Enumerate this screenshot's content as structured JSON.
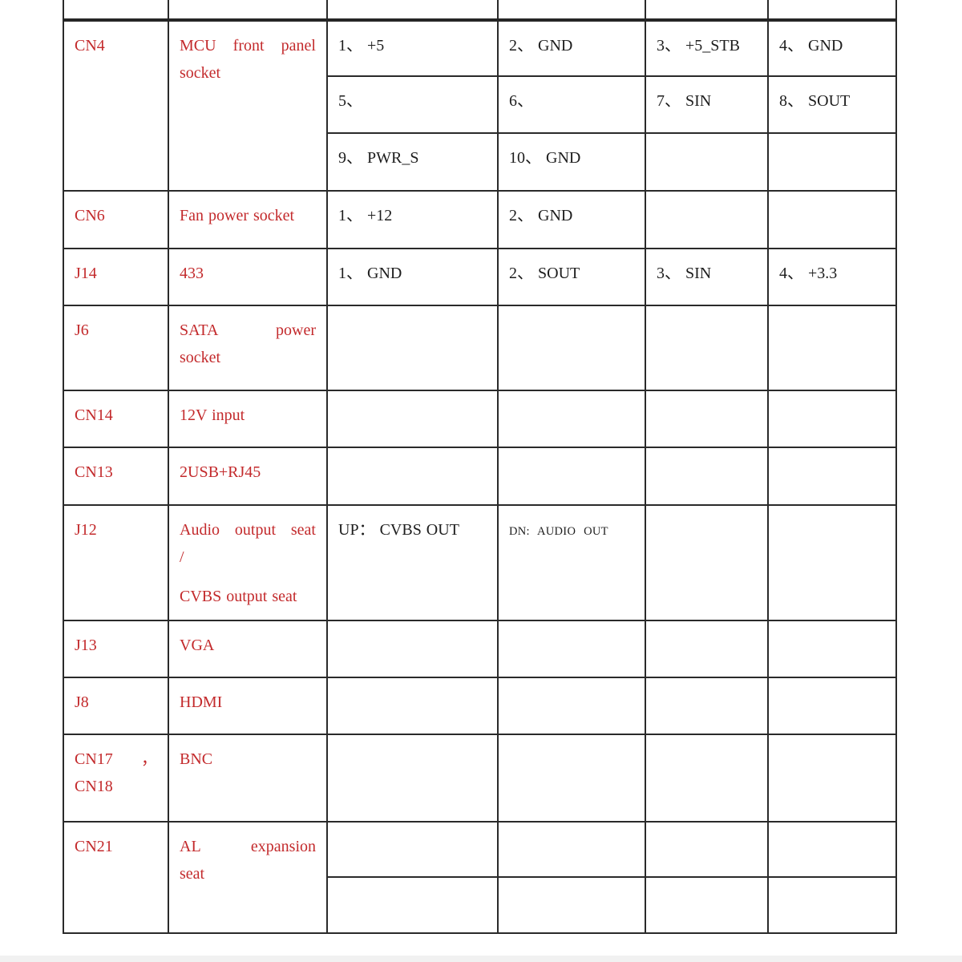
{
  "colors": {
    "accent_red": "#c32a2c",
    "text_black": "#1d1d1d",
    "border": "#2a2a2a"
  },
  "rows": {
    "cn4": {
      "name": "CN4",
      "desc": [
        "MCU front panel",
        "socket"
      ],
      "pins": {
        "p1": "1、 +5",
        "p2": "2、 GND",
        "p3": "3、 +5_STB",
        "p4": "4、 GND",
        "p5": "5、",
        "p6": "6、",
        "p7": "7、 SIN",
        "p8": "8、 SOUT",
        "p9": "9、 PWR_S",
        "p10": "10、 GND"
      }
    },
    "cn6": {
      "name": "CN6",
      "desc": "Fan power socket",
      "pins": {
        "p1": "1、 +12",
        "p2": "2、 GND"
      }
    },
    "j14": {
      "name": "J14",
      "desc": "433",
      "pins": {
        "p1": "1、 GND",
        "p2": "2、 SOUT",
        "p3": "3、 SIN",
        "p4": "4、 +3.3"
      }
    },
    "j6": {
      "name": "J6",
      "desc": [
        "SATA power",
        "socket"
      ]
    },
    "cn14": {
      "name": "CN14",
      "desc": "12V input"
    },
    "cn13": {
      "name": "CN13",
      "desc": "2USB+RJ45"
    },
    "j12": {
      "name": "J12",
      "desc": [
        "Audio output seat",
        "/",
        "",
        "CVBS output seat"
      ],
      "up": "UP： CVBS OUT",
      "dn": "DN: AUDIO OUT"
    },
    "j13": {
      "name": "J13",
      "desc": "VGA"
    },
    "j8": {
      "name": "J8",
      "desc": "HDMI"
    },
    "cn17_18": {
      "name": [
        "CN17 ，",
        "CN18"
      ],
      "desc": "BNC"
    },
    "cn21": {
      "name": "CN21",
      "desc": [
        "AL expansion",
        "seat"
      ]
    }
  }
}
